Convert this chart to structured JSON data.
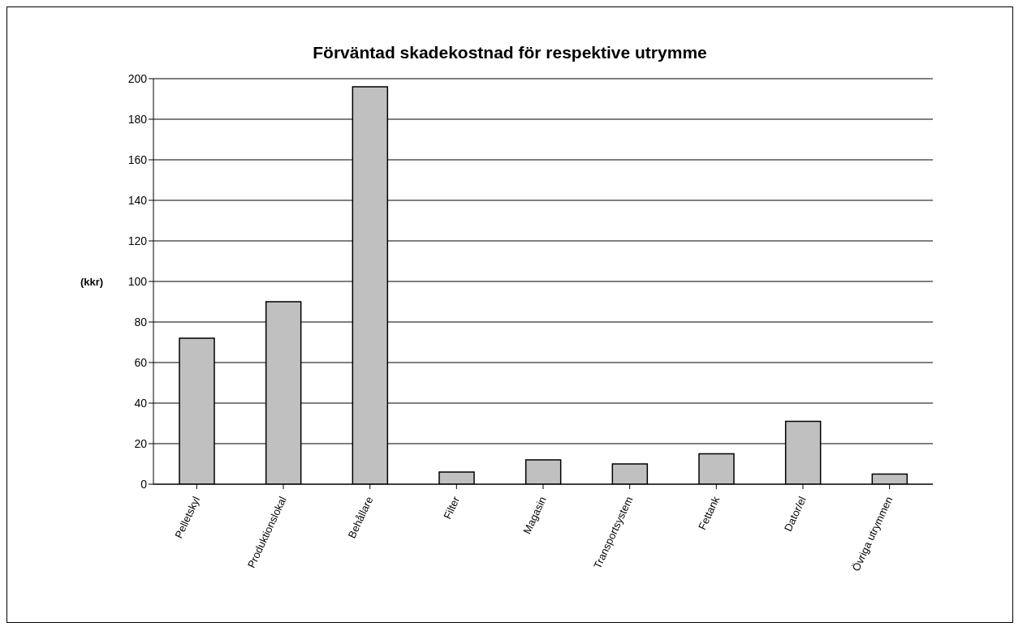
{
  "chart_data": {
    "type": "bar",
    "title": "Förväntad skadekostnad för respektive utrymme",
    "ylabel": "(kkr)",
    "categories": [
      "Pelletskyl",
      "Produktionslokal",
      "Behållare",
      "Filter",
      "Magasin",
      "Transportsystem",
      "Fettank",
      "Dator/el",
      "Övriga utrymmen"
    ],
    "values": [
      72,
      90,
      196,
      6,
      12,
      10,
      15,
      31,
      5
    ],
    "color": "#c0c0c0",
    "ylim": [
      0,
      200
    ],
    "yticks": [
      0,
      20,
      40,
      60,
      80,
      100,
      120,
      140,
      160,
      180,
      200
    ],
    "grid": "y"
  }
}
